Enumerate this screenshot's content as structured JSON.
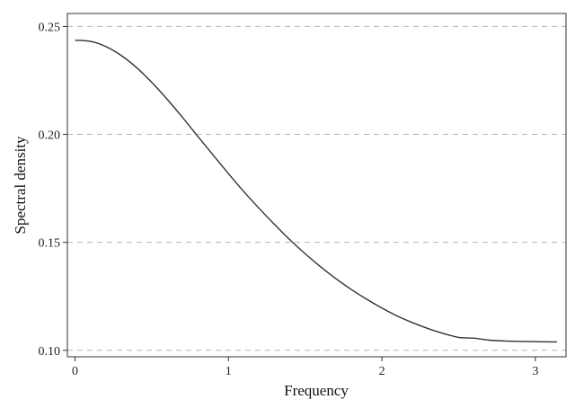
{
  "chart_data": {
    "type": "line",
    "title": "",
    "xlabel": "Frequency",
    "ylabel": "Spectral density",
    "xlim": [
      -0.05,
      3.2
    ],
    "ylim": [
      0.097,
      0.256
    ],
    "x_ticks": [
      0,
      1,
      2,
      3
    ],
    "x_tick_labels": [
      "0",
      "1",
      "2",
      "3"
    ],
    "y_ticks": [
      0.1,
      0.15,
      0.2,
      0.25
    ],
    "y_tick_labels": [
      "0.10",
      "0.15",
      "0.20",
      "0.25"
    ],
    "grid": "horizontal dashed",
    "line_color": "#333333",
    "grid_color": "#b5b5b5",
    "series": [
      {
        "x": [
          0,
          0.1,
          0.2,
          0.3,
          0.4,
          0.5,
          0.6,
          0.7,
          0.8,
          0.9,
          1.0,
          1.1,
          1.2,
          1.3,
          1.4,
          1.5,
          1.6,
          1.7,
          1.8,
          1.9,
          2.0,
          2.1,
          2.2,
          2.3,
          2.4,
          2.5,
          2.6,
          2.7,
          2.8,
          2.9,
          3.0,
          3.1,
          3.1416
        ],
        "y": [
          0.2436,
          0.2431,
          0.2407,
          0.2366,
          0.231,
          0.2241,
          0.2163,
          0.2079,
          0.1991,
          0.1904,
          0.1818,
          0.1735,
          0.1657,
          0.1583,
          0.1512,
          0.1447,
          0.1387,
          0.1332,
          0.1282,
          0.1237,
          0.1196,
          0.1159,
          0.1128,
          0.1101,
          0.1078,
          0.106,
          0.1056,
          0.1047,
          0.1043,
          0.1041,
          0.104,
          0.1039,
          0.1039
        ]
      }
    ]
  }
}
